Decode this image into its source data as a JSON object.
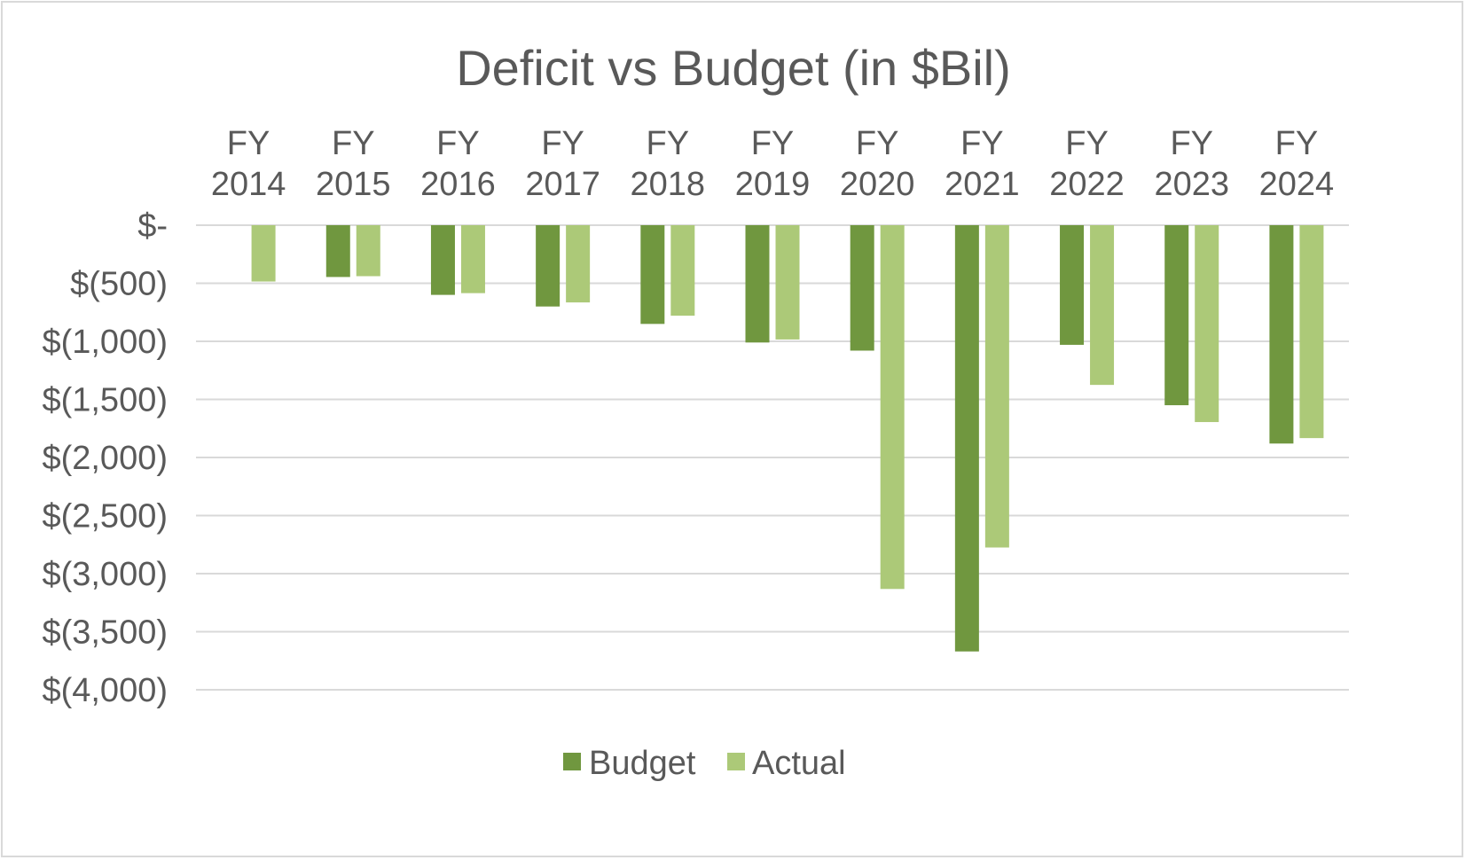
{
  "colors": {
    "budget": "#70973f",
    "actual": "#acc978",
    "text": "#595959",
    "grid": "#d9d9d9"
  },
  "chart_data": {
    "type": "bar",
    "title": "Deficit vs Budget (in $Bil)",
    "xlabel": "",
    "ylabel": "",
    "categories": [
      [
        "FY",
        "2014"
      ],
      [
        "FY",
        "2015"
      ],
      [
        "FY",
        "2016"
      ],
      [
        "FY",
        "2017"
      ],
      [
        "FY",
        "2018"
      ],
      [
        "FY",
        "2019"
      ],
      [
        "FY",
        "2020"
      ],
      [
        "FY",
        "2021"
      ],
      [
        "FY",
        "2022"
      ],
      [
        "FY",
        "2023"
      ],
      [
        "FY",
        "2024"
      ]
    ],
    "series": [
      {
        "name": "Budget",
        "values": [
          null,
          -446,
          -600,
          -700,
          -850,
          -1010,
          -1080,
          -3670,
          -1030,
          -1550,
          -1880
        ]
      },
      {
        "name": "Actual",
        "values": [
          -485,
          -439,
          -585,
          -665,
          -779,
          -984,
          -3132,
          -2775,
          -1375,
          -1695,
          -1833
        ]
      }
    ],
    "ylim": [
      -4000,
      0
    ],
    "yticks": [
      0,
      -500,
      -1000,
      -1500,
      -2000,
      -2500,
      -3000,
      -3500,
      -4000
    ],
    "ytick_labels": [
      "$-",
      "$(500)",
      "$(1,000)",
      "$(1,500)",
      "$(2,000)",
      "$(2,500)",
      "$(3,000)",
      "$(3,500)",
      "$(4,000)"
    ],
    "grid": true,
    "category_axis_position": "top",
    "legend_position": "bottom"
  }
}
